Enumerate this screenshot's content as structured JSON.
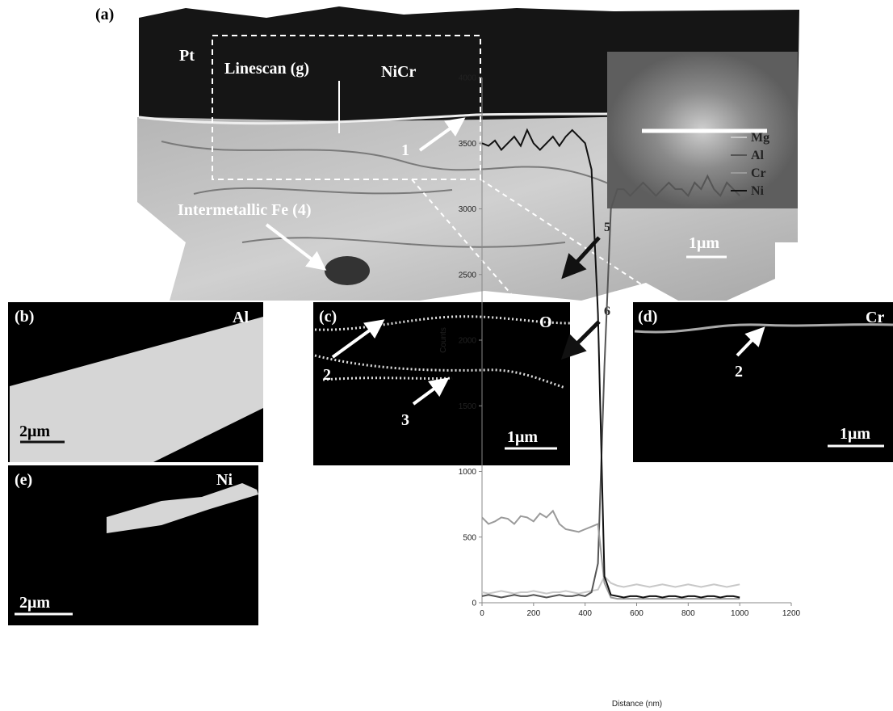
{
  "panels": {
    "a": {
      "label": "(a)",
      "labels": [
        "Pt",
        "Linescan (g)",
        "NiCr",
        "1",
        "Intermetallic Fe (4)"
      ],
      "scale_bar": "1μm"
    },
    "b": {
      "label": "(b)",
      "element": "Al",
      "scale_bar": "2μm"
    },
    "c": {
      "label": "(c)",
      "element": "O",
      "labels": [
        "2",
        "3"
      ],
      "scale_bar": "1μm"
    },
    "d": {
      "label": "(d)",
      "element": "Cr",
      "labels": [
        "2"
      ],
      "scale_bar": "1μm"
    },
    "e": {
      "label": "(e)",
      "element": "Ni",
      "scale_bar": "2μm"
    }
  },
  "chart_data": {
    "type": "line",
    "x_label": "Distance (nm)",
    "y_label": "Counts",
    "x": [
      0,
      25,
      50,
      75,
      100,
      125,
      150,
      175,
      200,
      225,
      250,
      275,
      300,
      325,
      350,
      375,
      400,
      425,
      450,
      475,
      500,
      525,
      550,
      575,
      600,
      625,
      650,
      675,
      700,
      725,
      750,
      775,
      800,
      825,
      850,
      875,
      900,
      925,
      950,
      975,
      1000
    ],
    "series": [
      {
        "name": "Mg",
        "color": "#c8c8c8",
        "values": [
          80,
          70,
          80,
          90,
          80,
          70,
          80,
          80,
          90,
          80,
          70,
          80,
          80,
          90,
          80,
          70,
          80,
          90,
          100,
          200,
          150,
          130,
          120,
          130,
          140,
          130,
          120,
          130,
          140,
          130,
          120,
          130,
          140,
          130,
          120,
          130,
          140,
          130,
          120,
          130,
          140
        ]
      },
      {
        "name": "Al",
        "color": "#555555",
        "values": [
          50,
          60,
          50,
          40,
          50,
          60,
          50,
          50,
          60,
          50,
          40,
          50,
          60,
          50,
          50,
          60,
          50,
          80,
          300,
          1800,
          3000,
          3150,
          3150,
          3100,
          3150,
          3200,
          3150,
          3100,
          3150,
          3200,
          3150,
          3150,
          3100,
          3200,
          3150,
          3250,
          3150,
          3100,
          3200,
          3150,
          3100
        ]
      },
      {
        "name": "Cr",
        "color": "#9a9a9a",
        "values": [
          650,
          600,
          620,
          650,
          640,
          600,
          660,
          650,
          620,
          680,
          650,
          700,
          600,
          560,
          550,
          540,
          560,
          580,
          600,
          150,
          40,
          30,
          30,
          30,
          30,
          30,
          30,
          30,
          30,
          30,
          30,
          30,
          30,
          30,
          30,
          30,
          30,
          30,
          30,
          30,
          30
        ]
      },
      {
        "name": "Ni",
        "color": "#111111",
        "values": [
          3500,
          3480,
          3520,
          3450,
          3500,
          3550,
          3480,
          3600,
          3500,
          3450,
          3500,
          3550,
          3480,
          3550,
          3600,
          3550,
          3500,
          3300,
          2200,
          200,
          60,
          50,
          40,
          50,
          50,
          40,
          50,
          50,
          40,
          50,
          50,
          40,
          50,
          50,
          40,
          50,
          50,
          40,
          50,
          50,
          40
        ]
      }
    ],
    "xlim": [
      0,
      1200
    ],
    "xticks": [
      0,
      200,
      400,
      600,
      800,
      1000,
      1200
    ],
    "ylim": [
      0,
      4000
    ],
    "yticks": [
      0,
      500,
      1000,
      1500,
      2000,
      2500,
      3000,
      3500,
      4000
    ],
    "annotations": [
      "5",
      "6"
    ]
  }
}
